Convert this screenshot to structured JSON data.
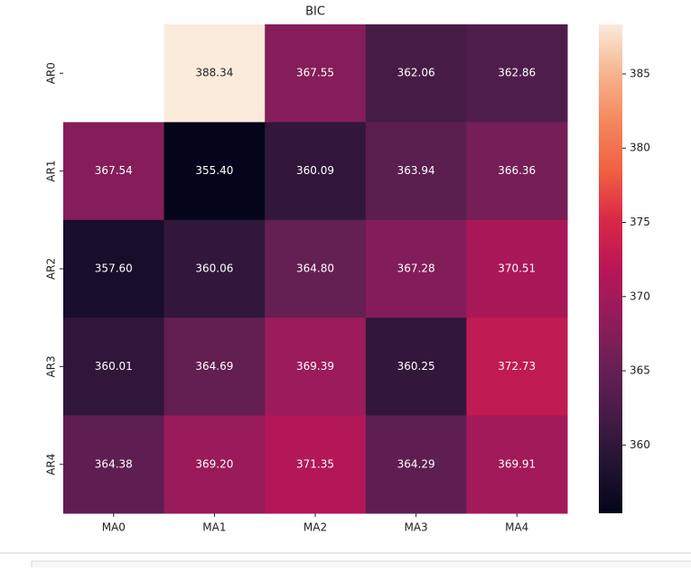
{
  "chart_data": {
    "type": "heatmap",
    "title": "BIC",
    "x_categories": [
      "MA0",
      "MA1",
      "MA2",
      "MA3",
      "MA4"
    ],
    "y_categories": [
      "AR0",
      "AR1",
      "AR2",
      "AR3",
      "AR4"
    ],
    "values": [
      [
        null,
        388.34,
        367.55,
        362.06,
        362.86
      ],
      [
        367.54,
        355.4,
        360.09,
        363.94,
        366.36
      ],
      [
        357.6,
        360.06,
        364.8,
        367.28,
        370.51
      ],
      [
        360.01,
        364.69,
        369.39,
        360.25,
        372.73
      ],
      [
        364.38,
        369.2,
        371.35,
        364.29,
        369.91
      ]
    ],
    "value_labels": [
      [
        null,
        "388.34",
        "367.55",
        "362.06",
        "362.86"
      ],
      [
        "367.54",
        "355.40",
        "360.09",
        "363.94",
        "366.36"
      ],
      [
        "357.60",
        "360.06",
        "364.80",
        "367.28",
        "370.51"
      ],
      [
        "360.01",
        "364.69",
        "369.39",
        "360.25",
        "372.73"
      ],
      [
        "364.38",
        "369.20",
        "371.35",
        "364.29",
        "369.91"
      ]
    ],
    "zlim": [
      355.4,
      388.34
    ],
    "colorbar_ticks": [
      360,
      365,
      370,
      375,
      380,
      385
    ],
    "colormap": [
      "#03051a",
      "#221331",
      "#451c47",
      "#691f55",
      "#921c5b",
      "#b91657",
      "#d92847",
      "#f06043",
      "#f4875e",
      "#f6b48e",
      "#faebdd"
    ]
  }
}
